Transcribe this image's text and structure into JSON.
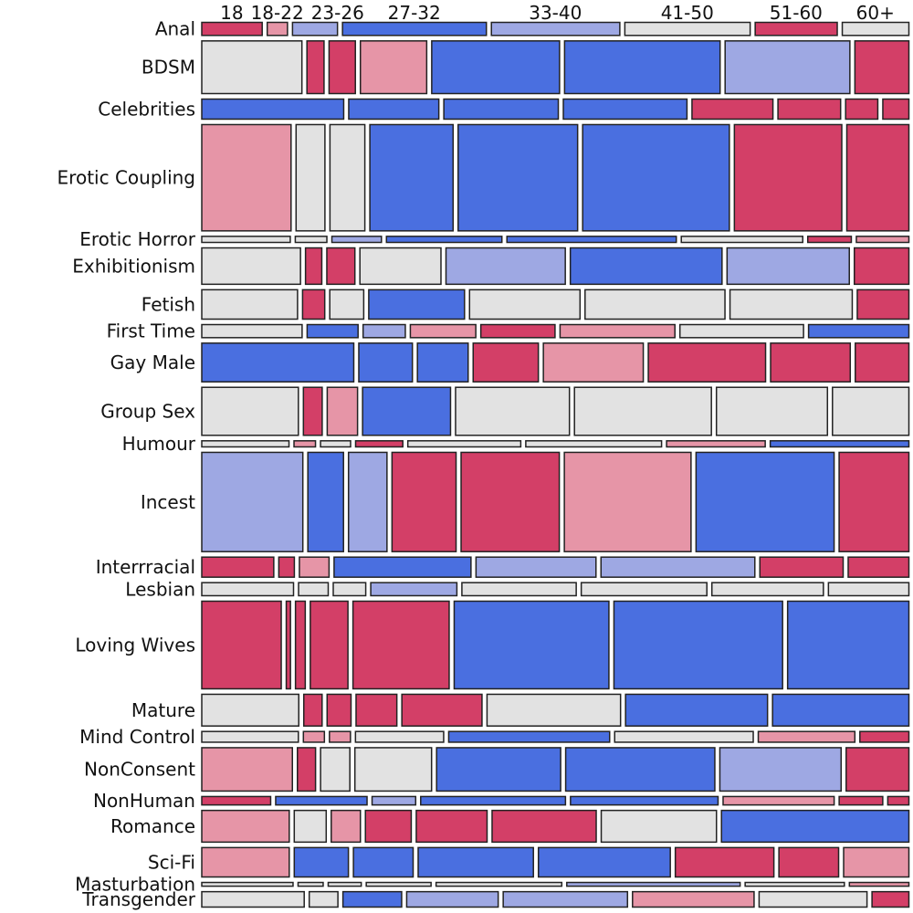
{
  "chart_data": {
    "type": "mosaic",
    "color_scale": {
      "strong_negative": "#d33f67",
      "weak_negative": "#e695a7",
      "neutral": "#e2e2e2",
      "weak_positive": "#9ea8e3",
      "strong_positive": "#4a6fe0"
    },
    "columns": [
      "18",
      "18-22",
      "23-26",
      "27-32",
      "33-40",
      "41-50",
      "51-60",
      "60+"
    ],
    "rows": [
      {
        "name": "Anal",
        "weight": 0.6,
        "cells": [
          {
            "w": 2,
            "c": "strong_negative"
          },
          {
            "w": 0.7,
            "c": "weak_negative"
          },
          {
            "w": 1.5,
            "c": "weak_positive"
          },
          {
            "w": 4.7,
            "c": "strong_positive"
          },
          {
            "w": 4.2,
            "c": "weak_positive"
          },
          {
            "w": 4.1,
            "c": "neutral"
          },
          {
            "w": 2.7,
            "c": "strong_negative"
          },
          {
            "w": 2.2,
            "c": "neutral"
          }
        ]
      },
      {
        "name": "BDSM",
        "weight": 2.3,
        "cells": [
          {
            "w": 3.3,
            "c": "neutral"
          },
          {
            "w": 0.6,
            "c": "strong_negative"
          },
          {
            "w": 0.9,
            "c": "strong_negative"
          },
          {
            "w": 2.2,
            "c": "weak_negative"
          },
          {
            "w": 4.2,
            "c": "strong_positive"
          },
          {
            "w": 5.1,
            "c": "strong_positive"
          },
          {
            "w": 4.1,
            "c": "weak_positive"
          },
          {
            "w": 1.8,
            "c": "strong_negative"
          }
        ]
      },
      {
        "name": "Celebrities",
        "weight": 0.9,
        "cells": [
          {
            "w": 4.7,
            "c": "strong_positive"
          },
          {
            "w": 3,
            "c": "strong_positive"
          },
          {
            "w": 3.8,
            "c": "strong_positive"
          },
          {
            "w": 4.1,
            "c": "strong_positive"
          },
          {
            "w": 2.7,
            "c": "strong_negative"
          },
          {
            "w": 2.1,
            "c": "strong_negative"
          },
          {
            "w": 1.1,
            "c": "strong_negative"
          },
          {
            "w": 0.9,
            "c": "strong_negative"
          }
        ]
      },
      {
        "name": "Erotic Coupling",
        "weight": 4.6,
        "cells": [
          {
            "w": 3,
            "c": "weak_negative"
          },
          {
            "w": 1,
            "c": "neutral"
          },
          {
            "w": 1.2,
            "c": "neutral"
          },
          {
            "w": 2.8,
            "c": "strong_positive"
          },
          {
            "w": 4,
            "c": "strong_positive"
          },
          {
            "w": 4.9,
            "c": "strong_positive"
          },
          {
            "w": 3.6,
            "c": "strong_negative"
          },
          {
            "w": 2.1,
            "c": "strong_negative"
          }
        ]
      },
      {
        "name": "Erotic Horror",
        "weight": 0.3,
        "cells": [
          {
            "w": 3,
            "c": "neutral"
          },
          {
            "w": 1.1,
            "c": "neutral"
          },
          {
            "w": 1.7,
            "c": "weak_positive"
          },
          {
            "w": 3.9,
            "c": "strong_positive"
          },
          {
            "w": 5.7,
            "c": "strong_positive"
          },
          {
            "w": 4.1,
            "c": "neutral"
          },
          {
            "w": 1.5,
            "c": "strong_negative"
          },
          {
            "w": 1.8,
            "c": "weak_negative"
          }
        ]
      },
      {
        "name": "Exhibitionism",
        "weight": 1.6,
        "cells": [
          {
            "w": 3.4,
            "c": "neutral"
          },
          {
            "w": 0.6,
            "c": "strong_negative"
          },
          {
            "w": 1,
            "c": "strong_negative"
          },
          {
            "w": 2.8,
            "c": "neutral"
          },
          {
            "w": 4.1,
            "c": "weak_positive"
          },
          {
            "w": 5.2,
            "c": "strong_positive"
          },
          {
            "w": 4.2,
            "c": "weak_positive"
          },
          {
            "w": 1.9,
            "c": "strong_negative"
          }
        ]
      },
      {
        "name": "Fetish",
        "weight": 1.3,
        "cells": [
          {
            "w": 3.3,
            "c": "neutral"
          },
          {
            "w": 0.8,
            "c": "strong_negative"
          },
          {
            "w": 1.2,
            "c": "neutral"
          },
          {
            "w": 3.3,
            "c": "strong_positive"
          },
          {
            "w": 3.8,
            "c": "neutral"
          },
          {
            "w": 4.8,
            "c": "neutral"
          },
          {
            "w": 4.2,
            "c": "neutral"
          },
          {
            "w": 1.8,
            "c": "strong_negative"
          }
        ]
      },
      {
        "name": "First Time",
        "weight": 0.6,
        "cells": [
          {
            "w": 3.5,
            "c": "neutral"
          },
          {
            "w": 1.8,
            "c": "strong_positive"
          },
          {
            "w": 1.5,
            "c": "weak_positive"
          },
          {
            "w": 2.3,
            "c": "weak_negative"
          },
          {
            "w": 2.6,
            "c": "strong_negative"
          },
          {
            "w": 4,
            "c": "weak_negative"
          },
          {
            "w": 4.3,
            "c": "neutral"
          },
          {
            "w": 3.5,
            "c": "strong_positive"
          }
        ]
      },
      {
        "name": "Gay Male",
        "weight": 1.7,
        "cells": [
          {
            "w": 5.3,
            "c": "strong_positive"
          },
          {
            "w": 1.9,
            "c": "strong_positive"
          },
          {
            "w": 1.8,
            "c": "strong_positive"
          },
          {
            "w": 2.3,
            "c": "strong_negative"
          },
          {
            "w": 3.5,
            "c": "weak_negative"
          },
          {
            "w": 4.1,
            "c": "strong_negative"
          },
          {
            "w": 2.8,
            "c": "strong_negative"
          },
          {
            "w": 1.9,
            "c": "strong_negative"
          }
        ]
      },
      {
        "name": "Group Sex",
        "weight": 2.1,
        "cells": [
          {
            "w": 3.4,
            "c": "neutral"
          },
          {
            "w": 0.7,
            "c": "strong_negative"
          },
          {
            "w": 1.1,
            "c": "weak_negative"
          },
          {
            "w": 3.1,
            "c": "strong_positive"
          },
          {
            "w": 4,
            "c": "neutral"
          },
          {
            "w": 4.8,
            "c": "neutral"
          },
          {
            "w": 3.9,
            "c": "neutral"
          },
          {
            "w": 2.7,
            "c": "neutral"
          }
        ]
      },
      {
        "name": "Humour",
        "weight": 0.3,
        "cells": [
          {
            "w": 3.1,
            "c": "neutral"
          },
          {
            "w": 0.8,
            "c": "weak_negative"
          },
          {
            "w": 1.1,
            "c": "neutral"
          },
          {
            "w": 1.7,
            "c": "strong_negative"
          },
          {
            "w": 4,
            "c": "neutral"
          },
          {
            "w": 4.8,
            "c": "neutral"
          },
          {
            "w": 3.5,
            "c": "weak_negative"
          },
          {
            "w": 4.9,
            "c": "strong_positive"
          }
        ]
      },
      {
        "name": "Incest",
        "weight": 4.3,
        "cells": [
          {
            "w": 3.6,
            "c": "weak_positive"
          },
          {
            "w": 1.3,
            "c": "strong_positive"
          },
          {
            "w": 1.4,
            "c": "weak_positive"
          },
          {
            "w": 2.3,
            "c": "strong_negative"
          },
          {
            "w": 3.5,
            "c": "strong_negative"
          },
          {
            "w": 4.5,
            "c": "weak_negative"
          },
          {
            "w": 4.9,
            "c": "strong_positive"
          },
          {
            "w": 2.5,
            "c": "strong_negative"
          }
        ]
      },
      {
        "name": "Interrracial",
        "weight": 0.9,
        "cells": [
          {
            "w": 2.6,
            "c": "strong_negative"
          },
          {
            "w": 0.6,
            "c": "strong_negative"
          },
          {
            "w": 1.1,
            "c": "weak_negative"
          },
          {
            "w": 4.9,
            "c": "strong_positive"
          },
          {
            "w": 4.3,
            "c": "weak_positive"
          },
          {
            "w": 5.5,
            "c": "weak_positive"
          },
          {
            "w": 3,
            "c": "strong_negative"
          },
          {
            "w": 2.2,
            "c": "strong_negative"
          }
        ]
      },
      {
        "name": "Lesbian",
        "weight": 0.6,
        "cells": [
          {
            "w": 3.3,
            "c": "neutral"
          },
          {
            "w": 1.1,
            "c": "neutral"
          },
          {
            "w": 1.2,
            "c": "neutral"
          },
          {
            "w": 3.1,
            "c": "weak_positive"
          },
          {
            "w": 4.1,
            "c": "neutral"
          },
          {
            "w": 4.5,
            "c": "neutral"
          },
          {
            "w": 4,
            "c": "neutral"
          },
          {
            "w": 2.9,
            "c": "neutral"
          }
        ]
      },
      {
        "name": "Loving Wives",
        "weight": 3.8,
        "cells": [
          {
            "w": 2.9,
            "c": "strong_negative"
          },
          {
            "w": 0.2,
            "c": "strong_negative"
          },
          {
            "w": 0.4,
            "c": "strong_negative"
          },
          {
            "w": 1.4,
            "c": "strong_negative"
          },
          {
            "w": 3.5,
            "c": "strong_negative"
          },
          {
            "w": 5.6,
            "c": "strong_positive"
          },
          {
            "w": 6.1,
            "c": "strong_positive"
          },
          {
            "w": 4.4,
            "c": "strong_positive"
          }
        ]
      },
      {
        "name": "Mature",
        "weight": 1.4,
        "cells": [
          {
            "w": 3.5,
            "c": "neutral"
          },
          {
            "w": 0.7,
            "c": "strong_negative"
          },
          {
            "w": 0.9,
            "c": "strong_negative"
          },
          {
            "w": 1.5,
            "c": "strong_negative"
          },
          {
            "w": 2.9,
            "c": "strong_negative"
          },
          {
            "w": 4.8,
            "c": "neutral"
          },
          {
            "w": 5.1,
            "c": "strong_positive"
          },
          {
            "w": 4.9,
            "c": "strong_positive"
          }
        ]
      },
      {
        "name": "Mind Control",
        "weight": 0.5,
        "cells": [
          {
            "w": 3.5,
            "c": "neutral"
          },
          {
            "w": 0.8,
            "c": "weak_negative"
          },
          {
            "w": 0.8,
            "c": "weak_negative"
          },
          {
            "w": 3.2,
            "c": "neutral"
          },
          {
            "w": 5.8,
            "c": "strong_positive"
          },
          {
            "w": 5,
            "c": "neutral"
          },
          {
            "w": 3.5,
            "c": "weak_negative"
          },
          {
            "w": 1.8,
            "c": "strong_negative"
          }
        ]
      },
      {
        "name": "NonConsent",
        "weight": 1.9,
        "cells": [
          {
            "w": 3.3,
            "c": "weak_negative"
          },
          {
            "w": 0.7,
            "c": "strong_negative"
          },
          {
            "w": 1.1,
            "c": "neutral"
          },
          {
            "w": 2.8,
            "c": "neutral"
          },
          {
            "w": 4.5,
            "c": "strong_positive"
          },
          {
            "w": 5.4,
            "c": "strong_positive"
          },
          {
            "w": 4.4,
            "c": "weak_positive"
          },
          {
            "w": 2.3,
            "c": "strong_negative"
          }
        ]
      },
      {
        "name": "NonHuman",
        "weight": 0.4,
        "cells": [
          {
            "w": 2.5,
            "c": "strong_negative"
          },
          {
            "w": 3.3,
            "c": "strong_positive"
          },
          {
            "w": 1.6,
            "c": "weak_positive"
          },
          {
            "w": 5.2,
            "c": "strong_positive"
          },
          {
            "w": 5.3,
            "c": "strong_positive"
          },
          {
            "w": 4,
            "c": "weak_negative"
          },
          {
            "w": 1.6,
            "c": "strong_negative"
          },
          {
            "w": 0.8,
            "c": "strong_negative"
          }
        ]
      },
      {
        "name": "Romance",
        "weight": 1.4,
        "cells": [
          {
            "w": 3.2,
            "c": "weak_negative"
          },
          {
            "w": 1.2,
            "c": "neutral"
          },
          {
            "w": 1.1,
            "c": "weak_negative"
          },
          {
            "w": 1.7,
            "c": "strong_negative"
          },
          {
            "w": 2.6,
            "c": "strong_negative"
          },
          {
            "w": 3.8,
            "c": "strong_negative"
          },
          {
            "w": 4.2,
            "c": "neutral"
          },
          {
            "w": 6.8,
            "c": "strong_positive"
          }
        ]
      },
      {
        "name": "Sci-Fi",
        "weight": 1.3,
        "cells": [
          {
            "w": 3.2,
            "c": "weak_negative"
          },
          {
            "w": 2,
            "c": "strong_positive"
          },
          {
            "w": 2.2,
            "c": "strong_positive"
          },
          {
            "w": 4.2,
            "c": "strong_positive"
          },
          {
            "w": 4.8,
            "c": "strong_positive"
          },
          {
            "w": 3.6,
            "c": "strong_negative"
          },
          {
            "w": 2.2,
            "c": "strong_negative"
          },
          {
            "w": 2.4,
            "c": "weak_negative"
          }
        ]
      },
      {
        "name": "Masturbation",
        "weight": 0.2,
        "cells": [
          {
            "w": 3.5,
            "c": "neutral"
          },
          {
            "w": 1,
            "c": "neutral"
          },
          {
            "w": 1.3,
            "c": "neutral"
          },
          {
            "w": 2.5,
            "c": "neutral"
          },
          {
            "w": 4.8,
            "c": "neutral"
          },
          {
            "w": 6.6,
            "c": "weak_positive"
          },
          {
            "w": 3.8,
            "c": "neutral"
          },
          {
            "w": 2.3,
            "c": "weak_negative"
          }
        ]
      },
      {
        "name": "Transgender",
        "weight": 0.7,
        "cells": [
          {
            "w": 3.8,
            "c": "neutral"
          },
          {
            "w": 1.1,
            "c": "neutral"
          },
          {
            "w": 2.2,
            "c": "strong_positive"
          },
          {
            "w": 3.4,
            "c": "weak_positive"
          },
          {
            "w": 4.6,
            "c": "weak_positive"
          },
          {
            "w": 4.5,
            "c": "weak_negative"
          },
          {
            "w": 4,
            "c": "neutral"
          },
          {
            "w": 1.4,
            "c": "strong_negative"
          }
        ]
      }
    ]
  }
}
